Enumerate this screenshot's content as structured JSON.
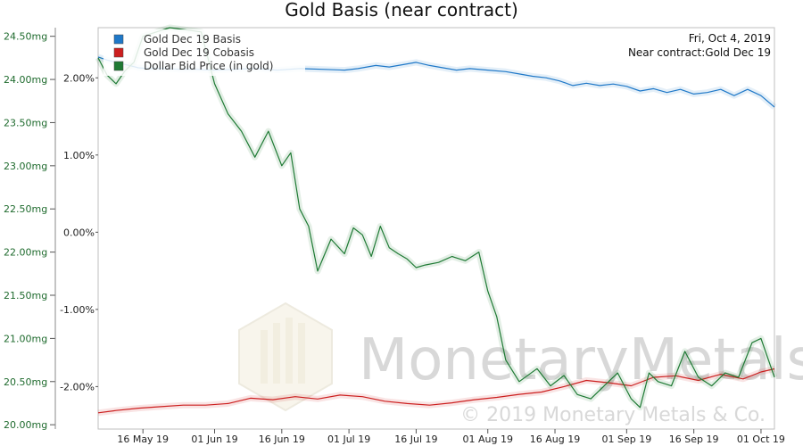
{
  "chart_data": {
    "type": "line",
    "title": "Gold Basis (near contract)",
    "date_text": "Fri, Oct 4, 2019",
    "contract_text": "Near contract:Gold Dec 19",
    "watermark": {
      "brand": "MonetaryMetals",
      "copyright": "© 2019 Monetary Metals & Co."
    },
    "x_tick_labels": [
      "16 May 19",
      "01 Jun 19",
      "16 Jun 19",
      "01 Jul 19",
      "16 Jul 19",
      "01 Aug 19",
      "16 Aug 19",
      "01 Sep 19",
      "16 Sep 19",
      "01 Oct 19"
    ],
    "x_tick_dates": [
      "2019-05-16",
      "2019-06-01",
      "2019-06-16",
      "2019-07-01",
      "2019-07-16",
      "2019-08-01",
      "2019-08-16",
      "2019-09-01",
      "2019-09-16",
      "2019-10-01"
    ],
    "x_range": [
      "2019-05-06",
      "2019-10-04"
    ],
    "y_left": {
      "ticks": [
        "20.00mg",
        "20.50mg",
        "21.00mg",
        "21.50mg",
        "22.00mg",
        "22.50mg",
        "23.00mg",
        "23.50mg",
        "24.00mg",
        "24.50mg"
      ],
      "values": [
        20.0,
        20.5,
        21.0,
        21.5,
        22.0,
        22.5,
        23.0,
        23.5,
        24.0,
        24.5
      ],
      "range": [
        19.95,
        24.6
      ]
    },
    "y_mid": {
      "ticks": [
        "2.00%",
        "1.00%",
        "0.00%",
        "-1.00%",
        "-2.00%"
      ],
      "values": [
        2.0,
        1.0,
        0.0,
        -1.0,
        -2.0
      ],
      "range": [
        -2.55,
        2.65
      ]
    },
    "series": [
      {
        "name": "Gold Dec 19 Basis",
        "color": "#1f78c8",
        "axis": "mid",
        "x": [
          "2019-05-06",
          "2019-05-08",
          "2019-05-10",
          "2019-05-13",
          "2019-05-15",
          "2019-05-17",
          "2019-05-21",
          "2019-05-24",
          "2019-05-28",
          "2019-06-01",
          "2019-06-05",
          "2019-06-10",
          "2019-06-15",
          "2019-06-20",
          "2019-06-25",
          "2019-06-30",
          "2019-07-03",
          "2019-07-07",
          "2019-07-10",
          "2019-07-13",
          "2019-07-16",
          "2019-07-19",
          "2019-07-22",
          "2019-07-25",
          "2019-07-28",
          "2019-08-01",
          "2019-08-05",
          "2019-08-08",
          "2019-08-11",
          "2019-08-14",
          "2019-08-17",
          "2019-08-20",
          "2019-08-23",
          "2019-08-26",
          "2019-08-29",
          "2019-09-01",
          "2019-09-04",
          "2019-09-07",
          "2019-09-10",
          "2019-09-13",
          "2019-09-16",
          "2019-09-19",
          "2019-09-22",
          "2019-09-25",
          "2019-09-28",
          "2019-10-01",
          "2019-10-04"
        ],
        "values": [
          2.27,
          2.23,
          2.2,
          2.16,
          2.13,
          2.12,
          2.12,
          2.11,
          2.11,
          2.1,
          2.11,
          2.12,
          2.1,
          2.12,
          2.11,
          2.1,
          2.12,
          2.16,
          2.14,
          2.17,
          2.2,
          2.16,
          2.13,
          2.1,
          2.12,
          2.1,
          2.08,
          2.05,
          2.02,
          2.0,
          1.96,
          1.9,
          1.93,
          1.9,
          1.92,
          1.89,
          1.83,
          1.86,
          1.81,
          1.85,
          1.79,
          1.81,
          1.85,
          1.77,
          1.85,
          1.77,
          1.62
        ]
      },
      {
        "name": "Gold Dec 19 Cobasis",
        "color": "#cc1f1f",
        "axis": "mid",
        "x": [
          "2019-05-06",
          "2019-05-10",
          "2019-05-15",
          "2019-05-20",
          "2019-05-25",
          "2019-05-30",
          "2019-06-04",
          "2019-06-09",
          "2019-06-14",
          "2019-06-19",
          "2019-06-24",
          "2019-06-29",
          "2019-07-04",
          "2019-07-09",
          "2019-07-14",
          "2019-07-19",
          "2019-07-24",
          "2019-07-29",
          "2019-08-03",
          "2019-08-08",
          "2019-08-13",
          "2019-08-18",
          "2019-08-23",
          "2019-08-28",
          "2019-09-02",
          "2019-09-07",
          "2019-09-12",
          "2019-09-17",
          "2019-09-22",
          "2019-09-27",
          "2019-10-01",
          "2019-10-04"
        ],
        "values": [
          -2.34,
          -2.31,
          -2.28,
          -2.26,
          -2.24,
          -2.24,
          -2.22,
          -2.15,
          -2.17,
          -2.13,
          -2.16,
          -2.11,
          -2.13,
          -2.19,
          -2.22,
          -2.24,
          -2.21,
          -2.17,
          -2.14,
          -2.1,
          -2.07,
          -2.0,
          -1.92,
          -1.95,
          -1.99,
          -1.88,
          -1.86,
          -1.92,
          -1.84,
          -1.9,
          -1.81,
          -1.77
        ]
      },
      {
        "name": "Dollar Bid Price (in gold)",
        "color": "#1e7a34",
        "axis": "left",
        "x": [
          "2019-05-06",
          "2019-05-08",
          "2019-05-10",
          "2019-05-12",
          "2019-05-14",
          "2019-05-16",
          "2019-05-22",
          "2019-05-29",
          "2019-06-01",
          "2019-06-04",
          "2019-06-07",
          "2019-06-10",
          "2019-06-13",
          "2019-06-16",
          "2019-06-18",
          "2019-06-20",
          "2019-06-22",
          "2019-06-24",
          "2019-06-27",
          "2019-06-30",
          "2019-07-02",
          "2019-07-04",
          "2019-07-06",
          "2019-07-08",
          "2019-07-10",
          "2019-07-12",
          "2019-07-14",
          "2019-07-16",
          "2019-07-18",
          "2019-07-21",
          "2019-07-24",
          "2019-07-27",
          "2019-07-30",
          "2019-08-01",
          "2019-08-03",
          "2019-08-05",
          "2019-08-08",
          "2019-08-12",
          "2019-08-15",
          "2019-08-18",
          "2019-08-21",
          "2019-08-24",
          "2019-08-27",
          "2019-08-30",
          "2019-09-02",
          "2019-09-04",
          "2019-09-06",
          "2019-09-08",
          "2019-09-11",
          "2019-09-14",
          "2019-09-17",
          "2019-09-20",
          "2019-09-23",
          "2019-09-26",
          "2019-09-29",
          "2019-10-01",
          "2019-10-04"
        ],
        "values": [
          24.25,
          24.05,
          23.95,
          24.1,
          24.2,
          24.5,
          24.6,
          24.55,
          23.95,
          23.6,
          23.4,
          23.1,
          23.4,
          23.0,
          23.15,
          22.5,
          22.3,
          21.78,
          22.15,
          21.98,
          22.28,
          22.2,
          21.95,
          22.3,
          22.05,
          21.98,
          21.92,
          21.82,
          21.85,
          21.88,
          21.95,
          21.9,
          22.0,
          21.55,
          21.25,
          20.75,
          20.5,
          20.65,
          20.45,
          20.57,
          20.35,
          20.3,
          20.45,
          20.6,
          20.3,
          20.2,
          20.6,
          20.5,
          20.45,
          20.85,
          20.55,
          20.45,
          20.6,
          20.55,
          20.95,
          21.0,
          20.55
        ]
      }
    ]
  }
}
